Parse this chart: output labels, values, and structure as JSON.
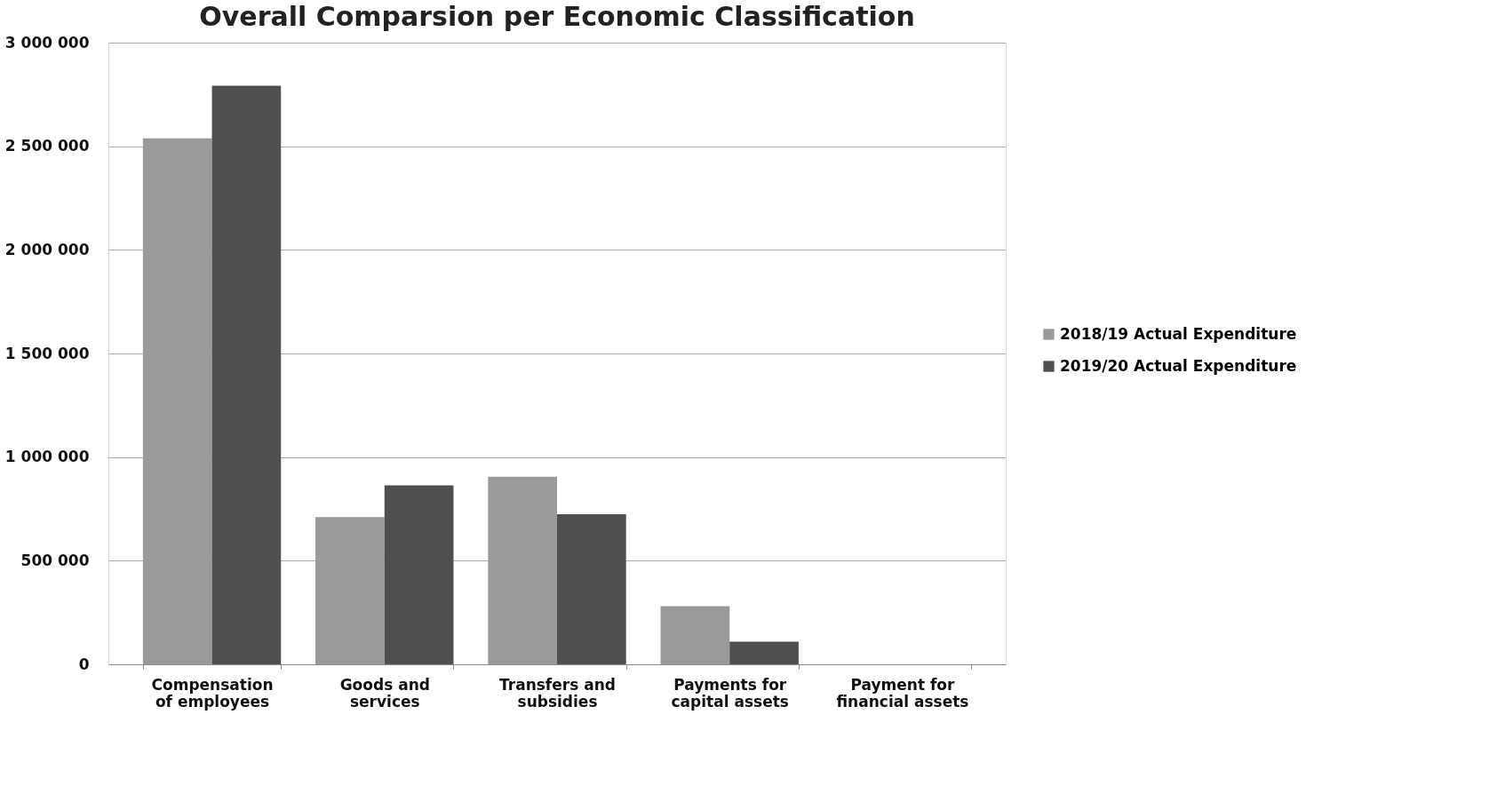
{
  "chart_data": {
    "type": "bar",
    "title": "Overall Comparsion per Economic Classification",
    "categories": [
      "Compensation of employees",
      "Goods and services",
      "Transfers and subsidies",
      "Payments for capital assets",
      "Payment for financial assets"
    ],
    "series": [
      {
        "name": "2018/19  Actual Expenditure",
        "color": "#9a9a9a",
        "values": [
          2538000,
          710000,
          905000,
          281000,
          0
        ]
      },
      {
        "name": "2019/20  Actual Expenditure",
        "color": "#4f4f4f",
        "values": [
          2792000,
          864000,
          724000,
          109000,
          0
        ]
      }
    ],
    "ylim": [
      0,
      3000000
    ],
    "yticks": [
      {
        "value": 0,
        "label": "0"
      },
      {
        "value": 500000,
        "label": "500 000"
      },
      {
        "value": 1000000,
        "label": "1 000 000"
      },
      {
        "value": 1500000,
        "label": "1 500 000"
      },
      {
        "value": 2000000,
        "label": "2 000 000"
      },
      {
        "value": 2500000,
        "label": "2 500 000"
      },
      {
        "value": 3000000,
        "label": "3 000 000"
      }
    ],
    "grid": "y",
    "legend": "right"
  }
}
